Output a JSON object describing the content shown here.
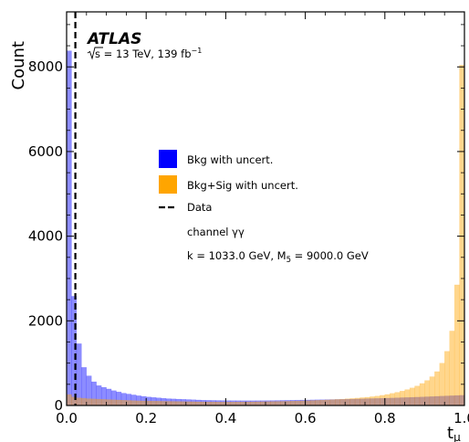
{
  "chart_data": {
    "type": "histogram",
    "xlabel": "t",
    "xlabel_sub": "μ",
    "ylabel": "Count",
    "xlim": [
      0,
      1.0
    ],
    "ylim": [
      0,
      9300
    ],
    "xticks": [
      "0.0",
      "0.2",
      "0.4",
      "0.6",
      "0.8",
      "1.0"
    ],
    "yticks": [
      "0",
      "2000",
      "4000",
      "6000",
      "8000"
    ],
    "bin_width": 0.0125,
    "experiment": "ATLAS",
    "energy_prefix": "s = 13 TeV, 139 fb",
    "energy_sqrt_arg": "s",
    "energy_superscript": "−1",
    "data_line_x": 0.022,
    "legend": {
      "bkg": "Bkg with uncert.",
      "sig": "Bkg+Sig with uncert.",
      "data": "Data",
      "channel_prefix": "channel ",
      "channel_value": "γγ",
      "params_prefix": "k = 1033.0 GeV, M",
      "params_sub": "5",
      "params_suffix": " = 9000.0 GeV"
    },
    "colors": {
      "bkg": "#0000ff",
      "sig": "#ffa500",
      "data": "#000000"
    },
    "series": [
      {
        "name": "Bkg with uncert.",
        "values": [
          8380,
          2580,
          1460,
          900,
          700,
          560,
          470,
          430,
          390,
          350,
          320,
          290,
          270,
          250,
          230,
          215,
          200,
          190,
          180,
          170,
          160,
          155,
          150,
          145,
          140,
          135,
          130,
          125,
          122,
          120,
          118,
          116,
          115,
          114,
          113,
          112,
          112,
          112,
          113,
          114,
          115,
          116,
          118,
          120,
          122,
          124,
          126,
          128,
          130,
          132,
          134,
          136,
          138,
          140,
          142,
          145,
          148,
          150,
          153,
          156,
          160,
          163,
          166,
          170,
          173,
          176,
          180,
          184,
          188,
          192,
          196,
          200,
          205,
          210,
          215,
          220,
          225,
          230,
          235,
          240
        ]
      },
      {
        "name": "Bkg+Sig with uncert.",
        "values": [
          260,
          200,
          180,
          170,
          160,
          155,
          150,
          145,
          140,
          135,
          130,
          125,
          120,
          115,
          110,
          108,
          106,
          104,
          102,
          100,
          98,
          96,
          94,
          92,
          90,
          88,
          86,
          85,
          84,
          83,
          82,
          82,
          82,
          82,
          83,
          84,
          85,
          86,
          88,
          90,
          92,
          94,
          96,
          98,
          100,
          103,
          106,
          110,
          114,
          118,
          122,
          127,
          132,
          138,
          144,
          150,
          158,
          166,
          175,
          185,
          195,
          208,
          222,
          240,
          260,
          285,
          310,
          340,
          375,
          415,
          460,
          520,
          590,
          680,
          800,
          1000,
          1280,
          1760,
          2850,
          8040
        ]
      }
    ]
  }
}
